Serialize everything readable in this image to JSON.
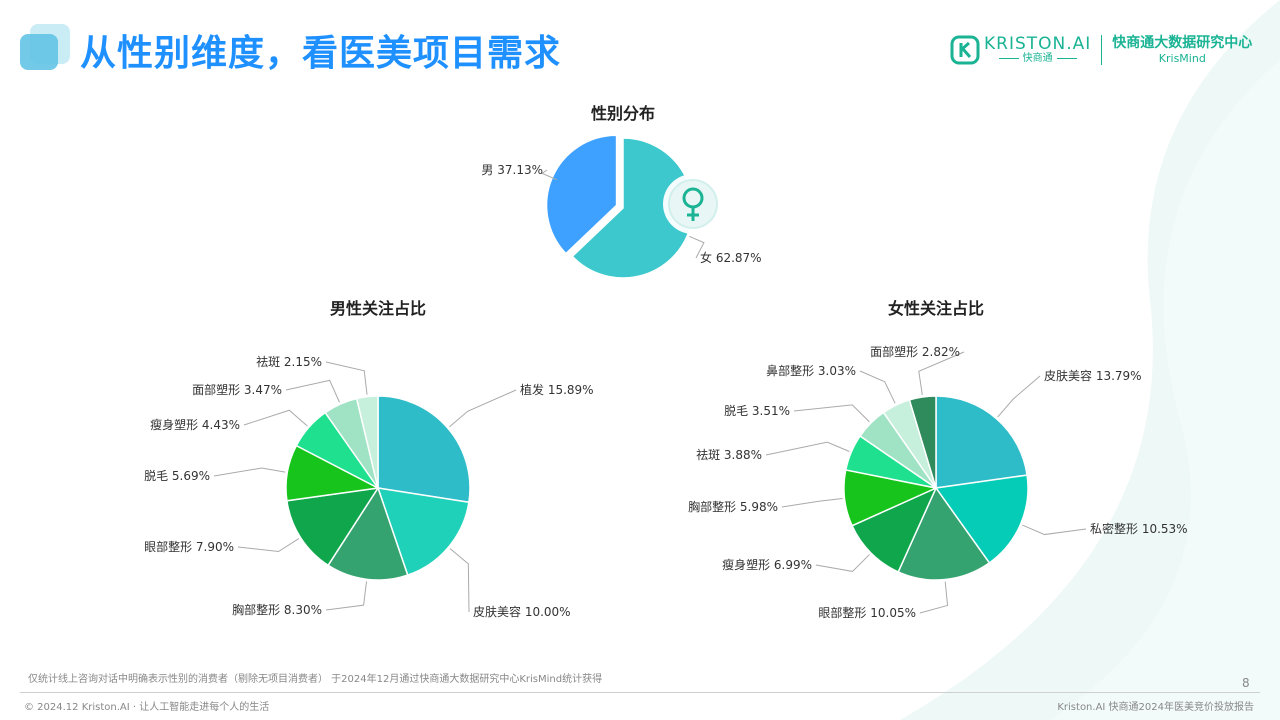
{
  "header": {
    "title": "从性别维度，看医美项目需求",
    "brand_wordmark": "KRISTON.AI",
    "brand_sub": "快商通",
    "brand_center": "快商通大数据研究中心",
    "brand_center_en": "KrisMind"
  },
  "chart_data": [
    {
      "type": "pie",
      "title": "性别分布",
      "slices": [
        {
          "label": "女",
          "value": 62.87,
          "display": "62.87%",
          "color": "#3cc8cc"
        },
        {
          "label": "男",
          "value": 37.13,
          "display": "37.13%",
          "color": "#3ea0ff"
        }
      ],
      "icon": "female-symbol-icon"
    },
    {
      "type": "pie",
      "title": "男性关注占比",
      "slices": [
        {
          "label": "植发",
          "value": 15.89,
          "display": "15.89%",
          "color": "#2ebcc9"
        },
        {
          "label": "皮肤美容",
          "value": 10.0,
          "display": "10.00%",
          "color": "#1fd1b8"
        },
        {
          "label": "胸部整形",
          "value": 8.3,
          "display": "8.30%",
          "color": "#34a36f"
        },
        {
          "label": "眼部整形",
          "value": 7.9,
          "display": "7.90%",
          "color": "#0fa64c"
        },
        {
          "label": "脱毛",
          "value": 5.69,
          "display": "5.69%",
          "color": "#17c41c"
        },
        {
          "label": "瘦身塑形",
          "value": 4.43,
          "display": "4.43%",
          "color": "#1fe08f"
        },
        {
          "label": "面部塑形",
          "value": 3.47,
          "display": "3.47%",
          "color": "#9fe3c4"
        },
        {
          "label": "祛斑",
          "value": 2.15,
          "display": "2.15%",
          "color": "#c6efdc"
        }
      ]
    },
    {
      "type": "pie",
      "title": "女性关注占比",
      "slices": [
        {
          "label": "皮肤美容",
          "value": 13.79,
          "display": "13.79%",
          "color": "#2ebcc9"
        },
        {
          "label": "私密整形",
          "value": 10.53,
          "display": "10.53%",
          "color": "#05ccb6"
        },
        {
          "label": "眼部整形",
          "value": 10.05,
          "display": "10.05%",
          "color": "#34a36f"
        },
        {
          "label": "瘦身塑形",
          "value": 6.99,
          "display": "6.99%",
          "color": "#0fa64c"
        },
        {
          "label": "胸部整形",
          "value": 5.98,
          "display": "5.98%",
          "color": "#17c41c"
        },
        {
          "label": "祛斑",
          "value": 3.88,
          "display": "3.88%",
          "color": "#1fe08f"
        },
        {
          "label": "脱毛",
          "value": 3.51,
          "display": "3.51%",
          "color": "#9fe3c4"
        },
        {
          "label": "鼻部整形",
          "value": 3.03,
          "display": "3.03%",
          "color": "#c6efdc"
        },
        {
          "label": "面部塑形",
          "value": 2.82,
          "display": "2.82%",
          "color": "#2f8a5c"
        }
      ]
    }
  ],
  "footer": {
    "note": "仅统计线上咨询对话中明确表示性别的消费者（剔除无项目消费者） 于2024年12月通过快商通大数据研究中心KrisMind统计获得",
    "page_number": "8",
    "left": "© 2024.12 Kriston.AI · 让人工智能走进每个人的生活",
    "right": "Kriston.AI 快商通2024年医美竞价投放报告"
  }
}
